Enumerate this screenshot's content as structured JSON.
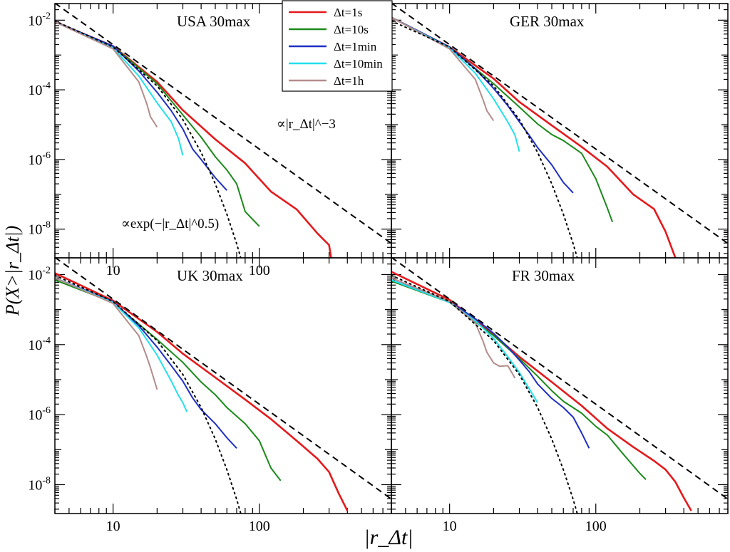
{
  "figure": {
    "ylabel": "P(X>|r_Δt|)",
    "xlabel": "|r_Δt|",
    "annotation_power": "∝|r_Δt|^−3",
    "annotation_stretched": "∝exp(−|r_Δt|^0.5)"
  },
  "legend": {
    "placement": "top-center (inside USA panel)",
    "entries": [
      {
        "label": "Δt=1s",
        "color": "#e41a1c"
      },
      {
        "label": "Δt=10s",
        "color": "#1b8a1b"
      },
      {
        "label": "Δt=1min",
        "color": "#1f2fc4"
      },
      {
        "label": "Δt=10min",
        "color": "#22e0ee"
      },
      {
        "label": "Δt=1h",
        "color": "#b48c8c"
      }
    ]
  },
  "chart_data": [
    {
      "type": "line",
      "title": "USA 30max",
      "xscale": "log",
      "yscale": "log",
      "xlim": [
        4,
        800
      ],
      "ylim": [
        1.5e-09,
        0.03
      ],
      "xticks": [
        "10",
        "100"
      ],
      "yticks": [
        "10^-2",
        "10^-4",
        "10^-6",
        "10^-8"
      ],
      "series": [
        {
          "name": "Δt=1s",
          "x": [
            4,
            10,
            20,
            30,
            50,
            80,
            120,
            180,
            250,
            300,
            310
          ],
          "y": [
            0.009,
            0.0018,
            0.00017,
            2.6e-05,
            3.8e-06,
            7.8e-07,
            1.2e-07,
            3.7e-08,
            7.5e-09,
            3.5e-09,
            1.5e-09
          ]
        },
        {
          "name": "Δt=10s",
          "x": [
            4,
            10,
            20,
            30,
            40,
            50,
            60,
            70,
            80,
            100
          ],
          "y": [
            0.009,
            0.0018,
            0.00015,
            1.9e-05,
            4.4e-06,
            1.2e-06,
            5e-07,
            2e-07,
            3.2e-08,
            1.2e-08
          ]
        },
        {
          "name": "Δt=1min",
          "x": [
            4,
            10,
            15,
            20,
            25,
            30,
            35,
            40,
            50,
            60
          ],
          "y": [
            0.009,
            0.0018,
            0.00035,
            8.5e-05,
            2.5e-05,
            7.5e-06,
            2e-06,
            1e-06,
            3e-07,
            1.3e-07
          ]
        },
        {
          "name": "Δt=10min",
          "x": [
            4,
            10,
            15,
            20,
            25,
            28,
            30
          ],
          "y": [
            0.009,
            0.0016,
            0.00025,
            4.2e-05,
            1.2e-05,
            4e-06,
            1.3e-06
          ]
        },
        {
          "name": "Δt=1h",
          "x": [
            4,
            10,
            15,
            17,
            18,
            20
          ],
          "y": [
            0.009,
            0.0015,
            0.00017,
            4e-05,
            1.7e-05,
            8.5e-06
          ]
        },
        {
          "name": "∝|r_Δt|^−3",
          "x": [
            4,
            800
          ],
          "y": [
            0.031,
            3.9e-09
          ]
        },
        {
          "name": "∝exp(−|r_Δt|^0.5)",
          "x": [
            4,
            10,
            20,
            30,
            40,
            50,
            60,
            70,
            80
          ],
          "y": [
            0.0095,
            0.0017,
            0.00013,
            1.4e-05,
            1.6e-06,
            2e-07,
            2.7e-08,
            3.8e-09,
            5.5e-10
          ]
        }
      ]
    },
    {
      "type": "line",
      "title": "GER 30max",
      "xscale": "log",
      "yscale": "log",
      "xlim": [
        4,
        800
      ],
      "ylim": [
        1.5e-09,
        0.03
      ],
      "xticks": [],
      "yticks": [],
      "series": [
        {
          "name": "Δt=1s",
          "x": [
            4,
            10,
            20,
            30,
            50,
            80,
            120,
            180,
            250,
            300,
            350
          ],
          "y": [
            0.012,
            0.0017,
            0.00021,
            4.5e-05,
            9.5e-06,
            2.3e-06,
            6.2e-07,
            1e-07,
            3.8e-08,
            8.5e-09,
            1.5e-09
          ]
        },
        {
          "name": "Δt=10s",
          "x": [
            4,
            10,
            20,
            30,
            40,
            50,
            60,
            80,
            100,
            120,
            130
          ],
          "y": [
            0.012,
            0.0017,
            0.00015,
            3.2e-05,
            1.05e-05,
            5.2e-06,
            3.5e-06,
            1.5e-06,
            2.8e-07,
            4e-08,
            1.6e-08
          ]
        },
        {
          "name": "Δt=1min",
          "x": [
            4,
            10,
            15,
            20,
            25,
            30,
            35,
            40,
            50,
            60,
            70
          ],
          "y": [
            0.012,
            0.0017,
            0.0004,
            0.00011,
            3.5e-05,
            1.2e-05,
            5e-06,
            2.2e-06,
            7e-07,
            2.2e-07,
            1.1e-07
          ]
        },
        {
          "name": "Δt=10min",
          "x": [
            4,
            10,
            15,
            20,
            25,
            28,
            30
          ],
          "y": [
            0.012,
            0.0016,
            0.0003,
            5.5e-05,
            1.2e-05,
            5e-06,
            1.7e-06
          ]
        },
        {
          "name": "Δt=1h",
          "x": [
            4,
            10,
            15,
            17,
            18,
            20
          ],
          "y": [
            0.012,
            0.0015,
            0.0002,
            5e-05,
            2.5e-05,
            1.3e-05
          ]
        },
        {
          "name": "∝|r_Δt|^−3",
          "x": [
            4,
            800
          ],
          "y": [
            0.031,
            3.9e-09
          ]
        },
        {
          "name": "∝exp(−|r_Δt|^0.5)",
          "x": [
            4,
            10,
            20,
            30,
            40,
            50,
            60,
            70,
            80
          ],
          "y": [
            0.0095,
            0.0017,
            0.00013,
            1.4e-05,
            1.6e-06,
            2e-07,
            2.7e-08,
            3.8e-09,
            5.5e-10
          ]
        }
      ]
    },
    {
      "type": "line",
      "title": "UK 30max",
      "xscale": "log",
      "yscale": "log",
      "xlim": [
        4,
        800
      ],
      "ylim": [
        1.5e-09,
        0.03
      ],
      "xticks": [
        "10",
        "100"
      ],
      "yticks": [
        "10^-2",
        "10^-4",
        "10^-6",
        "10^-8"
      ],
      "series": [
        {
          "name": "Δt=1s",
          "x": [
            4,
            10,
            20,
            30,
            50,
            80,
            120,
            180,
            250,
            300,
            350,
            400
          ],
          "y": [
            0.011,
            0.0018,
            0.00023,
            5.5e-05,
            1.15e-05,
            2.7e-06,
            7.5e-07,
            1.8e-07,
            5.5e-08,
            2.3e-08,
            5.5e-09,
            1.8e-09
          ]
        },
        {
          "name": "Δt=10s",
          "x": [
            4,
            10,
            20,
            30,
            40,
            50,
            60,
            80,
            100,
            120,
            140
          ],
          "y": [
            0.007,
            0.0016,
            0.00014,
            3.1e-05,
            8.5e-06,
            3.7e-06,
            1.6e-06,
            5.5e-07,
            1.8e-07,
            3e-08,
            1.3e-08
          ]
        },
        {
          "name": "Δt=1min",
          "x": [
            4,
            10,
            15,
            20,
            25,
            30,
            35,
            40,
            50,
            60,
            70
          ],
          "y": [
            0.008,
            0.0017,
            0.00035,
            8.5e-05,
            2.5e-05,
            9e-06,
            3e-06,
            1.4e-06,
            5.5e-07,
            2.2e-07,
            1.1e-07
          ]
        },
        {
          "name": "Δt=10min",
          "x": [
            4,
            10,
            15,
            20,
            25,
            28,
            30,
            32
          ],
          "y": [
            0.008,
            0.0016,
            0.0003,
            5e-05,
            9e-06,
            3.5e-06,
            2.2e-06,
            1.2e-06
          ]
        },
        {
          "name": "Δt=1h",
          "x": [
            4,
            10,
            15,
            17,
            18,
            20
          ],
          "y": [
            0.008,
            0.0015,
            0.00018,
            4.5e-05,
            2.2e-05,
            5.2e-06
          ]
        },
        {
          "name": "∝|r_Δt|^−3",
          "x": [
            4,
            800
          ],
          "y": [
            0.031,
            3.9e-09
          ]
        },
        {
          "name": "∝exp(−|r_Δt|^0.5)",
          "x": [
            4,
            10,
            20,
            30,
            40,
            50,
            60,
            70,
            80
          ],
          "y": [
            0.0095,
            0.0017,
            0.00013,
            1.4e-05,
            1.6e-06,
            2e-07,
            2.7e-08,
            3.8e-09,
            5.5e-10
          ]
        }
      ]
    },
    {
      "type": "line",
      "title": "FR 30max",
      "xscale": "log",
      "yscale": "log",
      "xlim": [
        4,
        800
      ],
      "ylim": [
        1.5e-09,
        0.03
      ],
      "xticks": [
        "10",
        "100"
      ],
      "yticks": [],
      "series": [
        {
          "name": "Δt=1s",
          "x": [
            4,
            10,
            20,
            30,
            50,
            80,
            120,
            180,
            250,
            300,
            350,
            400,
            450
          ],
          "y": [
            0.012,
            0.0019,
            0.00019,
            4.5e-05,
            8.5e-06,
            1.8e-06,
            4e-07,
            1.2e-07,
            4.8e-08,
            2.7e-08,
            1.2e-08,
            4.2e-09,
            1.8e-09
          ]
        },
        {
          "name": "Δt=10s",
          "x": [
            4,
            10,
            20,
            30,
            40,
            50,
            60,
            80,
            100,
            120,
            150,
            200,
            220
          ],
          "y": [
            0.0065,
            0.0016,
            0.00018,
            4e-05,
            1.25e-05,
            4.8e-06,
            2.4e-06,
            1.1e-06,
            4.6e-07,
            2.6e-07,
            8.5e-08,
            2.1e-08,
            1.4e-08
          ]
        },
        {
          "name": "Δt=1min",
          "x": [
            4,
            10,
            15,
            20,
            25,
            30,
            35,
            40,
            50,
            60,
            70,
            80,
            90
          ],
          "y": [
            0.007,
            0.0017,
            0.00055,
            0.00021,
            8.5e-05,
            3.6e-05,
            1.7e-05,
            7.5e-06,
            2.9e-06,
            1.6e-06,
            8.5e-07,
            3e-07,
            1.1e-07
          ]
        },
        {
          "name": "Δt=10min",
          "x": [
            4,
            10,
            15,
            20,
            25,
            30,
            35,
            40
          ],
          "y": [
            0.007,
            0.0016,
            0.00048,
            0.00015,
            4.5e-05,
            1.6e-05,
            5.5e-06,
            2.2e-06
          ]
        },
        {
          "name": "Δt=1h",
          "x": [
            4,
            10,
            15,
            17,
            18,
            20,
            22,
            25,
            28
          ],
          "y": [
            0.008,
            0.0017,
            0.00042,
            0.00012,
            6e-05,
            3e-05,
            2.4e-05,
            2.5e-05,
            1.1e-05
          ]
        },
        {
          "name": "∝|r_Δt|^−3",
          "x": [
            4,
            800
          ],
          "y": [
            0.031,
            3.9e-09
          ]
        },
        {
          "name": "∝exp(−|r_Δt|^0.5)",
          "x": [
            4,
            10,
            20,
            30,
            40,
            50,
            60,
            70,
            80
          ],
          "y": [
            0.0095,
            0.0017,
            0.00013,
            1.4e-05,
            1.6e-06,
            2e-07,
            2.7e-08,
            3.8e-09,
            5.5e-10
          ]
        }
      ]
    }
  ]
}
